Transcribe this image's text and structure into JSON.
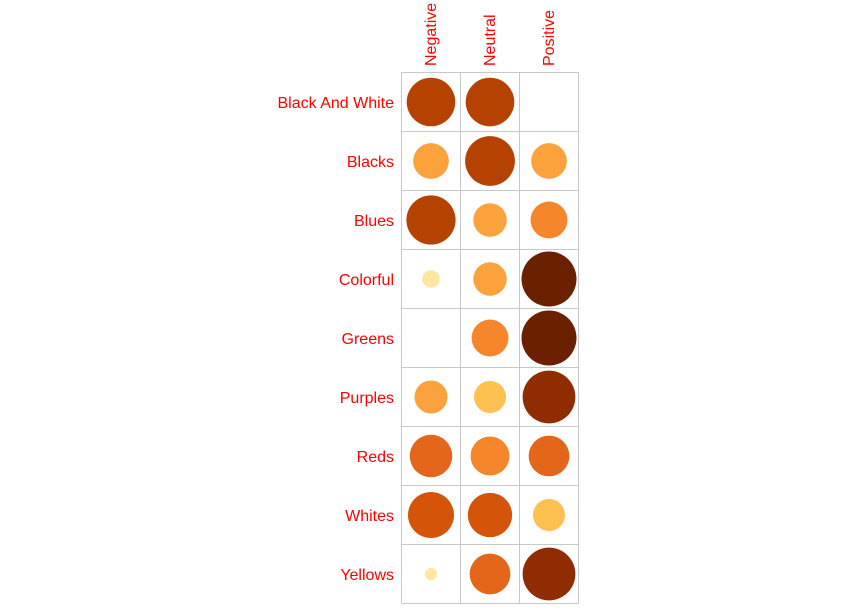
{
  "chart_data": {
    "type": "balloon",
    "columns": [
      "Negative",
      "Neutral",
      "Positive"
    ],
    "rows": [
      "Black And White",
      "Blacks",
      "Blues",
      "Colorful",
      "Greens",
      "Purples",
      "Reds",
      "Whites",
      "Yellows"
    ],
    "values": [
      [
        0.78,
        0.78,
        0.0
      ],
      [
        0.42,
        0.82,
        0.42
      ],
      [
        0.8,
        0.37,
        0.45
      ],
      [
        0.1,
        0.37,
        1.0
      ],
      [
        0.0,
        0.45,
        1.0
      ],
      [
        0.36,
        0.34,
        0.92
      ],
      [
        0.6,
        0.5,
        0.55
      ],
      [
        0.7,
        0.65,
        0.34
      ],
      [
        0.05,
        0.55,
        0.92
      ]
    ],
    "colormap": [
      "#ffffe0",
      "#fee7a0",
      "#fdd777",
      "#fdc152",
      "#fca23c",
      "#f5862b",
      "#e3661a",
      "#d45509",
      "#b54200",
      "#8f2c00",
      "#6b2000"
    ],
    "label_color": "#ff0000",
    "grid_color": "#c8c8c8"
  }
}
